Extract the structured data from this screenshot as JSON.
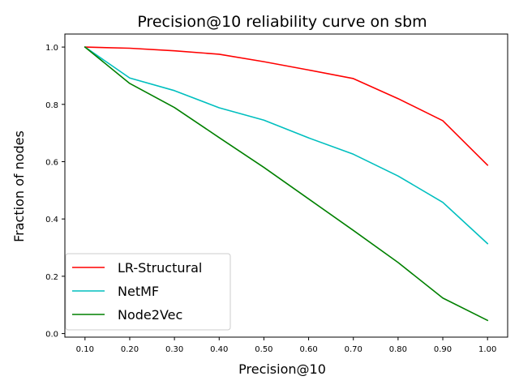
{
  "chart_data": {
    "type": "line",
    "title": "Precision@10 reliability curve on sbm",
    "xlabel": "Precision@10",
    "ylabel": "Fraction of nodes",
    "x": [
      0.1,
      0.2,
      0.3,
      0.4,
      0.5,
      0.6,
      0.7,
      0.8,
      0.9,
      1.0
    ],
    "x_tick_labels": [
      "0.10",
      "0.20",
      "0.30",
      "0.40",
      "0.50",
      "0.60",
      "0.70",
      "0.80",
      "0.90",
      "1.00"
    ],
    "y_ticks": [
      0.0,
      0.2,
      0.4,
      0.6,
      0.8,
      1.0
    ],
    "y_tick_labels": [
      "0.0",
      "0.2",
      "0.4",
      "0.6",
      "0.8",
      "1.0"
    ],
    "xlim": [
      0.055,
      1.045
    ],
    "ylim": [
      -0.0125,
      1.0455
    ],
    "legend_position": "lower-left",
    "series": [
      {
        "name": "LR-Structural",
        "color": "#ff0000",
        "values": [
          1.0,
          0.996,
          0.987,
          0.975,
          0.949,
          0.92,
          0.89,
          0.82,
          0.743,
          0.588
        ]
      },
      {
        "name": "NetMF",
        "color": "#00bfbf",
        "values": [
          1.0,
          0.892,
          0.848,
          0.788,
          0.745,
          0.683,
          0.626,
          0.55,
          0.458,
          0.314
        ]
      },
      {
        "name": "Node2Vec",
        "color": "#008000",
        "values": [
          1.0,
          0.873,
          0.789,
          0.684,
          0.58,
          0.47,
          0.36,
          0.248,
          0.124,
          0.046
        ]
      }
    ]
  }
}
